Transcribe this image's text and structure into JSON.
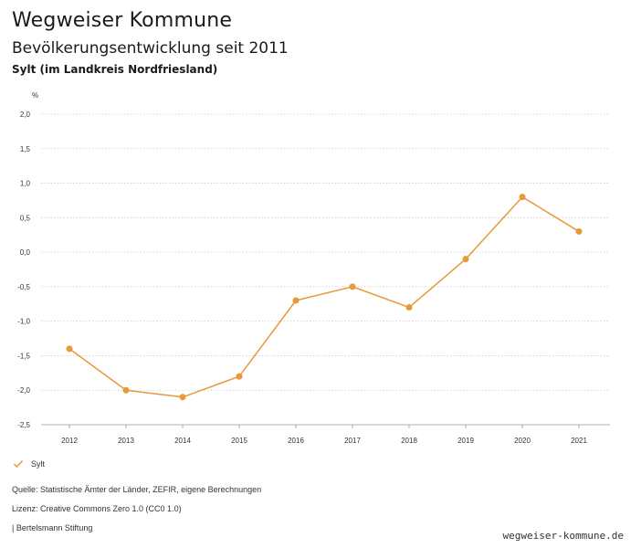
{
  "header": {
    "site_title": "Wegweiser Kommune",
    "chart_title": "Bevölkerungsentwicklung seit 2011",
    "chart_subtitle": "Sylt (im Landkreis Nordfriesland)"
  },
  "chart_data": {
    "type": "line",
    "ylabel": "%",
    "xlabel": "",
    "x": [
      "2012",
      "2013",
      "2014",
      "2015",
      "2016",
      "2017",
      "2018",
      "2019",
      "2020",
      "2021"
    ],
    "series": [
      {
        "name": "Sylt",
        "values": [
          -1.4,
          -2.0,
          -2.1,
          -1.8,
          -0.7,
          -0.5,
          -0.8,
          -0.1,
          0.8,
          0.3
        ],
        "color": "#e8993a"
      }
    ],
    "ylim": [
      -2.5,
      2.0
    ],
    "yticks": [
      2.0,
      1.5,
      1.0,
      0.5,
      0.0,
      -0.5,
      -1.0,
      -1.5,
      -2.0,
      -2.5
    ],
    "ytick_labels": [
      "2,0",
      "1,5",
      "1,0",
      "0,5",
      "0,0",
      "-0,5",
      "-1,0",
      "-1,5",
      "-2,0",
      "-2,5"
    ],
    "grid": true,
    "legend_placement": "bottom-left"
  },
  "legend": {
    "label": "Sylt"
  },
  "footer": {
    "source": "Quelle: Statistische Ämter der Länder, ZEFIR, eigene Berechnungen",
    "license": "Lizenz: Creative Commons Zero 1.0 (CC0 1.0)",
    "publisher": "| Bertelsmann Stiftung",
    "site_url": "wegweiser-kommune.de"
  },
  "colors": {
    "series": "#e8993a",
    "grid": "#cccccc",
    "axis": "#999999"
  }
}
